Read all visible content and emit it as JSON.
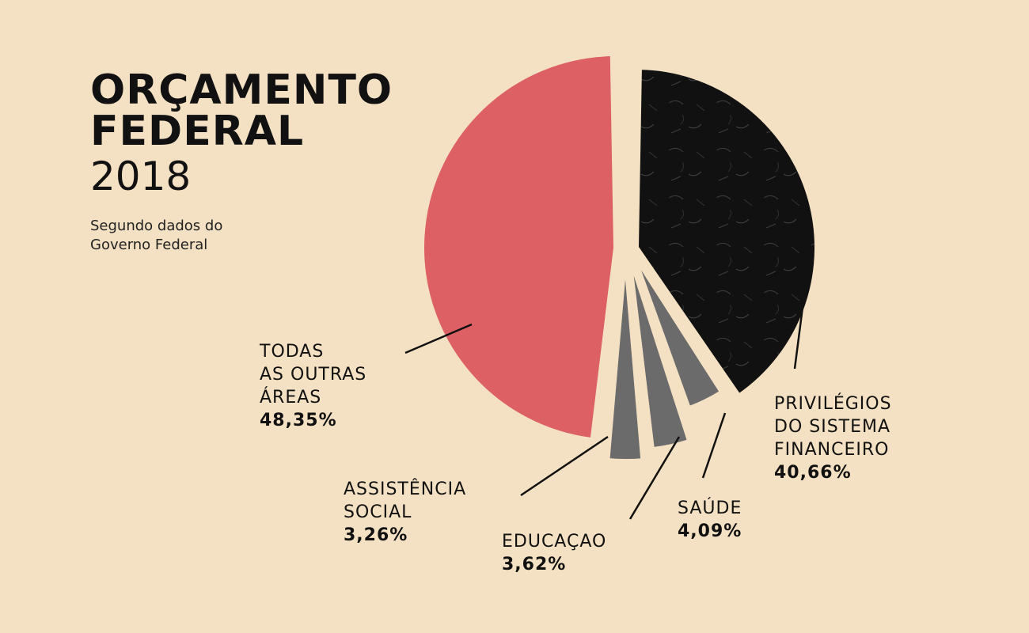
{
  "header": {
    "title_lines": [
      "ORÇAMENTO",
      "FEDERAL"
    ],
    "year": "2018",
    "source_lines": [
      "Segundo dados do",
      "Governo Federal"
    ]
  },
  "chart_data": {
    "type": "pie",
    "title": "ORÇAMENTO FEDERAL 2018",
    "slices": [
      {
        "name_lines": [
          "PRIVILÉGIOS",
          "DO SISTEMA",
          "FINANCEIRO"
        ],
        "value": 40.66,
        "label": "40,66%",
        "color": "#111111"
      },
      {
        "name_lines": [
          "SAÚDE"
        ],
        "value": 4.09,
        "label": "4,09%",
        "color": "#6b6b6b"
      },
      {
        "name_lines": [
          "EDUCAÇAO"
        ],
        "value": 3.62,
        "label": "3,62%",
        "color": "#6b6b6b"
      },
      {
        "name_lines": [
          "ASSISTÊNCIA",
          "SOCIAL"
        ],
        "value": 3.26,
        "label": "3,26%",
        "color": "#6b6b6b"
      },
      {
        "name_lines": [
          "TODAS",
          "AS OUTRAS",
          "ÁREAS"
        ],
        "value": 48.35,
        "label": "48,35%",
        "color": "#dc6064"
      }
    ]
  }
}
